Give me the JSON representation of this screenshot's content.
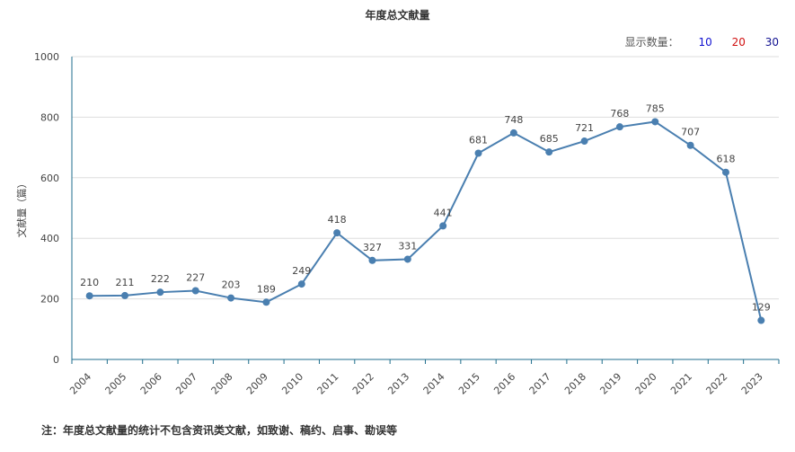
{
  "title": "年度总文献量",
  "display_count": {
    "label": "显示数量：",
    "options": [
      "10",
      "20",
      "30"
    ]
  },
  "note": "注：年度总文献量的统计不包含资讯类文献，如致谢、稿约、启事、勘误等",
  "chart_data": {
    "type": "line",
    "title": "年度总文献量",
    "xlabel": "",
    "ylabel": "文献量（篇）",
    "ylim": [
      0,
      1000
    ],
    "yticks": [
      0,
      200,
      400,
      600,
      800,
      1000
    ],
    "grid": true,
    "categories": [
      "2004",
      "2005",
      "2006",
      "2007",
      "2008",
      "2009",
      "2010",
      "2011",
      "2012",
      "2013",
      "2014",
      "2015",
      "2016",
      "2017",
      "2018",
      "2019",
      "2020",
      "2021",
      "2022",
      "2023"
    ],
    "series": [
      {
        "values": [
          210,
          211,
          222,
          227,
          203,
          189,
          249,
          418,
          327,
          331,
          441,
          681,
          748,
          685,
          721,
          768,
          785,
          707,
          618,
          129
        ]
      }
    ],
    "colors": {
      "line": "#4a7fb0",
      "axis": "#1f6e8c",
      "grid": "#dddddd"
    }
  }
}
